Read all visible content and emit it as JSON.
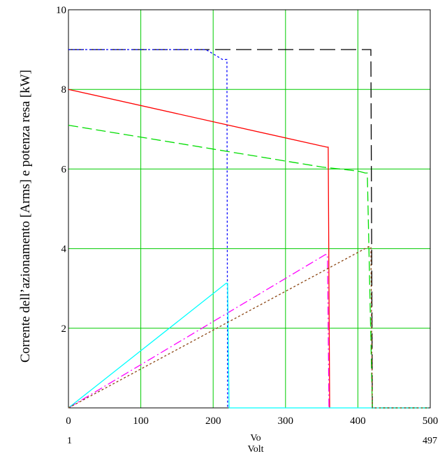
{
  "chart_data": {
    "type": "line",
    "title": "",
    "xlabel": "Vo",
    "xlabel2": "Volt",
    "ylabel": "Corrente dell’azionamento [Arms] e potenza resa [kW]",
    "xlim": [
      0,
      500
    ],
    "ylim": [
      0,
      10
    ],
    "x_ticks": [
      0,
      100,
      200,
      300,
      400,
      500
    ],
    "y_ticks": [
      2,
      4,
      6,
      8,
      10
    ],
    "x_range_labels": {
      "left": "1",
      "right": "497"
    },
    "grid": true,
    "grid_color": "#00cc00",
    "legend": "none",
    "series": [
      {
        "color": "#000000",
        "dash": "22,8",
        "x": [
          0,
          415,
          418,
          420,
          497
        ],
        "y": [
          9.0,
          9.0,
          9.0,
          0.0,
          0.0
        ]
      },
      {
        "color": "#0000ff",
        "dash": "3,3",
        "x": [
          0,
          190,
          213,
          219,
          220,
          222
        ],
        "y": [
          9.0,
          9.0,
          8.75,
          8.75,
          0.0,
          0.0
        ]
      },
      {
        "color": "#ff0000",
        "dash": "",
        "x": [
          0,
          357,
          359,
          361
        ],
        "y": [
          8.0,
          6.55,
          6.55,
          0.0
        ]
      },
      {
        "color": "#00dd00",
        "dash": "14,6",
        "x": [
          0,
          200,
          300,
          350,
          400,
          410,
          413,
          420,
          497
        ],
        "y": [
          7.1,
          6.5,
          6.2,
          6.05,
          5.95,
          5.9,
          5.9,
          0.0,
          0.0
        ]
      },
      {
        "color": "#ff00ff",
        "dash": "12,4,2,4",
        "x": [
          0,
          355,
          358,
          360
        ],
        "y": [
          0.0,
          3.85,
          3.85,
          0.0
        ]
      },
      {
        "color": "#00ffff",
        "dash": "",
        "x": [
          0,
          218,
          220,
          222,
          497
        ],
        "y": [
          0.0,
          3.13,
          3.13,
          0.0,
          0.0
        ]
      },
      {
        "color": "#8b4513",
        "dash": "3,3",
        "x": [
          0,
          415,
          418,
          420,
          497
        ],
        "y": [
          0.0,
          4.05,
          4.05,
          0.0,
          0.0
        ]
      }
    ]
  }
}
